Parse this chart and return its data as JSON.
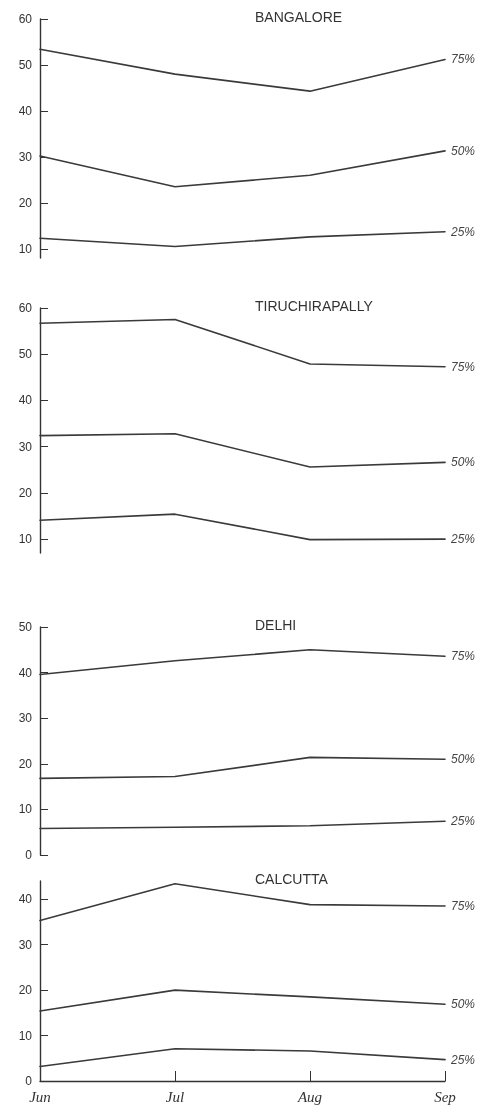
{
  "chart_data": [
    {
      "type": "line",
      "title": "BANGALORE",
      "categories": [
        null,
        null,
        null,
        null
      ],
      "ylim": [
        8,
        60
      ],
      "yticks": [
        10,
        20,
        30,
        40,
        50,
        60
      ],
      "tick_labels": "y",
      "series": [
        {
          "name": "75%",
          "color": "#3a3a3a",
          "values": [
            53.4,
            48,
            44.3,
            51.2
          ]
        },
        {
          "name": "50%",
          "color": "#3a3a3a",
          "values": [
            30.2,
            23.5,
            26,
            31.3
          ]
        },
        {
          "name": "25%",
          "color": "#3a3a3a",
          "values": [
            12.3,
            10.5,
            12.6,
            13.7
          ]
        }
      ]
    },
    {
      "type": "line",
      "title": "TIRUCHIRAPALLY",
      "categories": [
        null,
        null,
        null,
        null
      ],
      "ylim": [
        7,
        60
      ],
      "yticks": [
        10,
        20,
        30,
        40,
        50,
        60
      ],
      "tick_labels": "y",
      "series": [
        {
          "name": "75%",
          "color": "#3a3a3a",
          "values": [
            56.7,
            57.5,
            47.9,
            47.3
          ]
        },
        {
          "name": "50%",
          "color": "#3a3a3a",
          "values": [
            32.4,
            32.8,
            25.6,
            26.6
          ]
        },
        {
          "name": "25%",
          "color": "#3a3a3a",
          "values": [
            14.1,
            15.4,
            9.9,
            10
          ]
        }
      ]
    },
    {
      "type": "line",
      "title": "DELHI",
      "categories": [
        null,
        null,
        null,
        null
      ],
      "ylim": [
        0,
        50
      ],
      "yticks": [
        0,
        10,
        20,
        30,
        40,
        50
      ],
      "tick_labels": "y",
      "series": [
        {
          "name": "75%",
          "color": "#3a3a3a",
          "values": [
            39.6,
            42.6,
            45,
            43.6
          ]
        },
        {
          "name": "50%",
          "color": "#3a3a3a",
          "values": [
            16.8,
            17.2,
            21.4,
            21
          ]
        },
        {
          "name": "25%",
          "color": "#3a3a3a",
          "values": [
            5.8,
            6.1,
            6.4,
            7.4
          ]
        }
      ]
    },
    {
      "type": "line",
      "title": "CALCUTTA",
      "categories": [
        "Jun",
        "Jul",
        "Aug",
        "Sep"
      ],
      "ylim": [
        0,
        44
      ],
      "yticks": [
        0,
        10,
        20,
        30,
        40
      ],
      "series": [
        {
          "name": "75%",
          "color": "#3a3a3a",
          "values": [
            35.3,
            43.4,
            38.8,
            38.5
          ]
        },
        {
          "name": "50%",
          "color": "#3a3a3a",
          "values": [
            15.4,
            20,
            18.5,
            16.9
          ]
        },
        {
          "name": "25%",
          "color": "#3a3a3a",
          "values": [
            3.2,
            7.1,
            6.6,
            4.7
          ]
        }
      ]
    }
  ]
}
